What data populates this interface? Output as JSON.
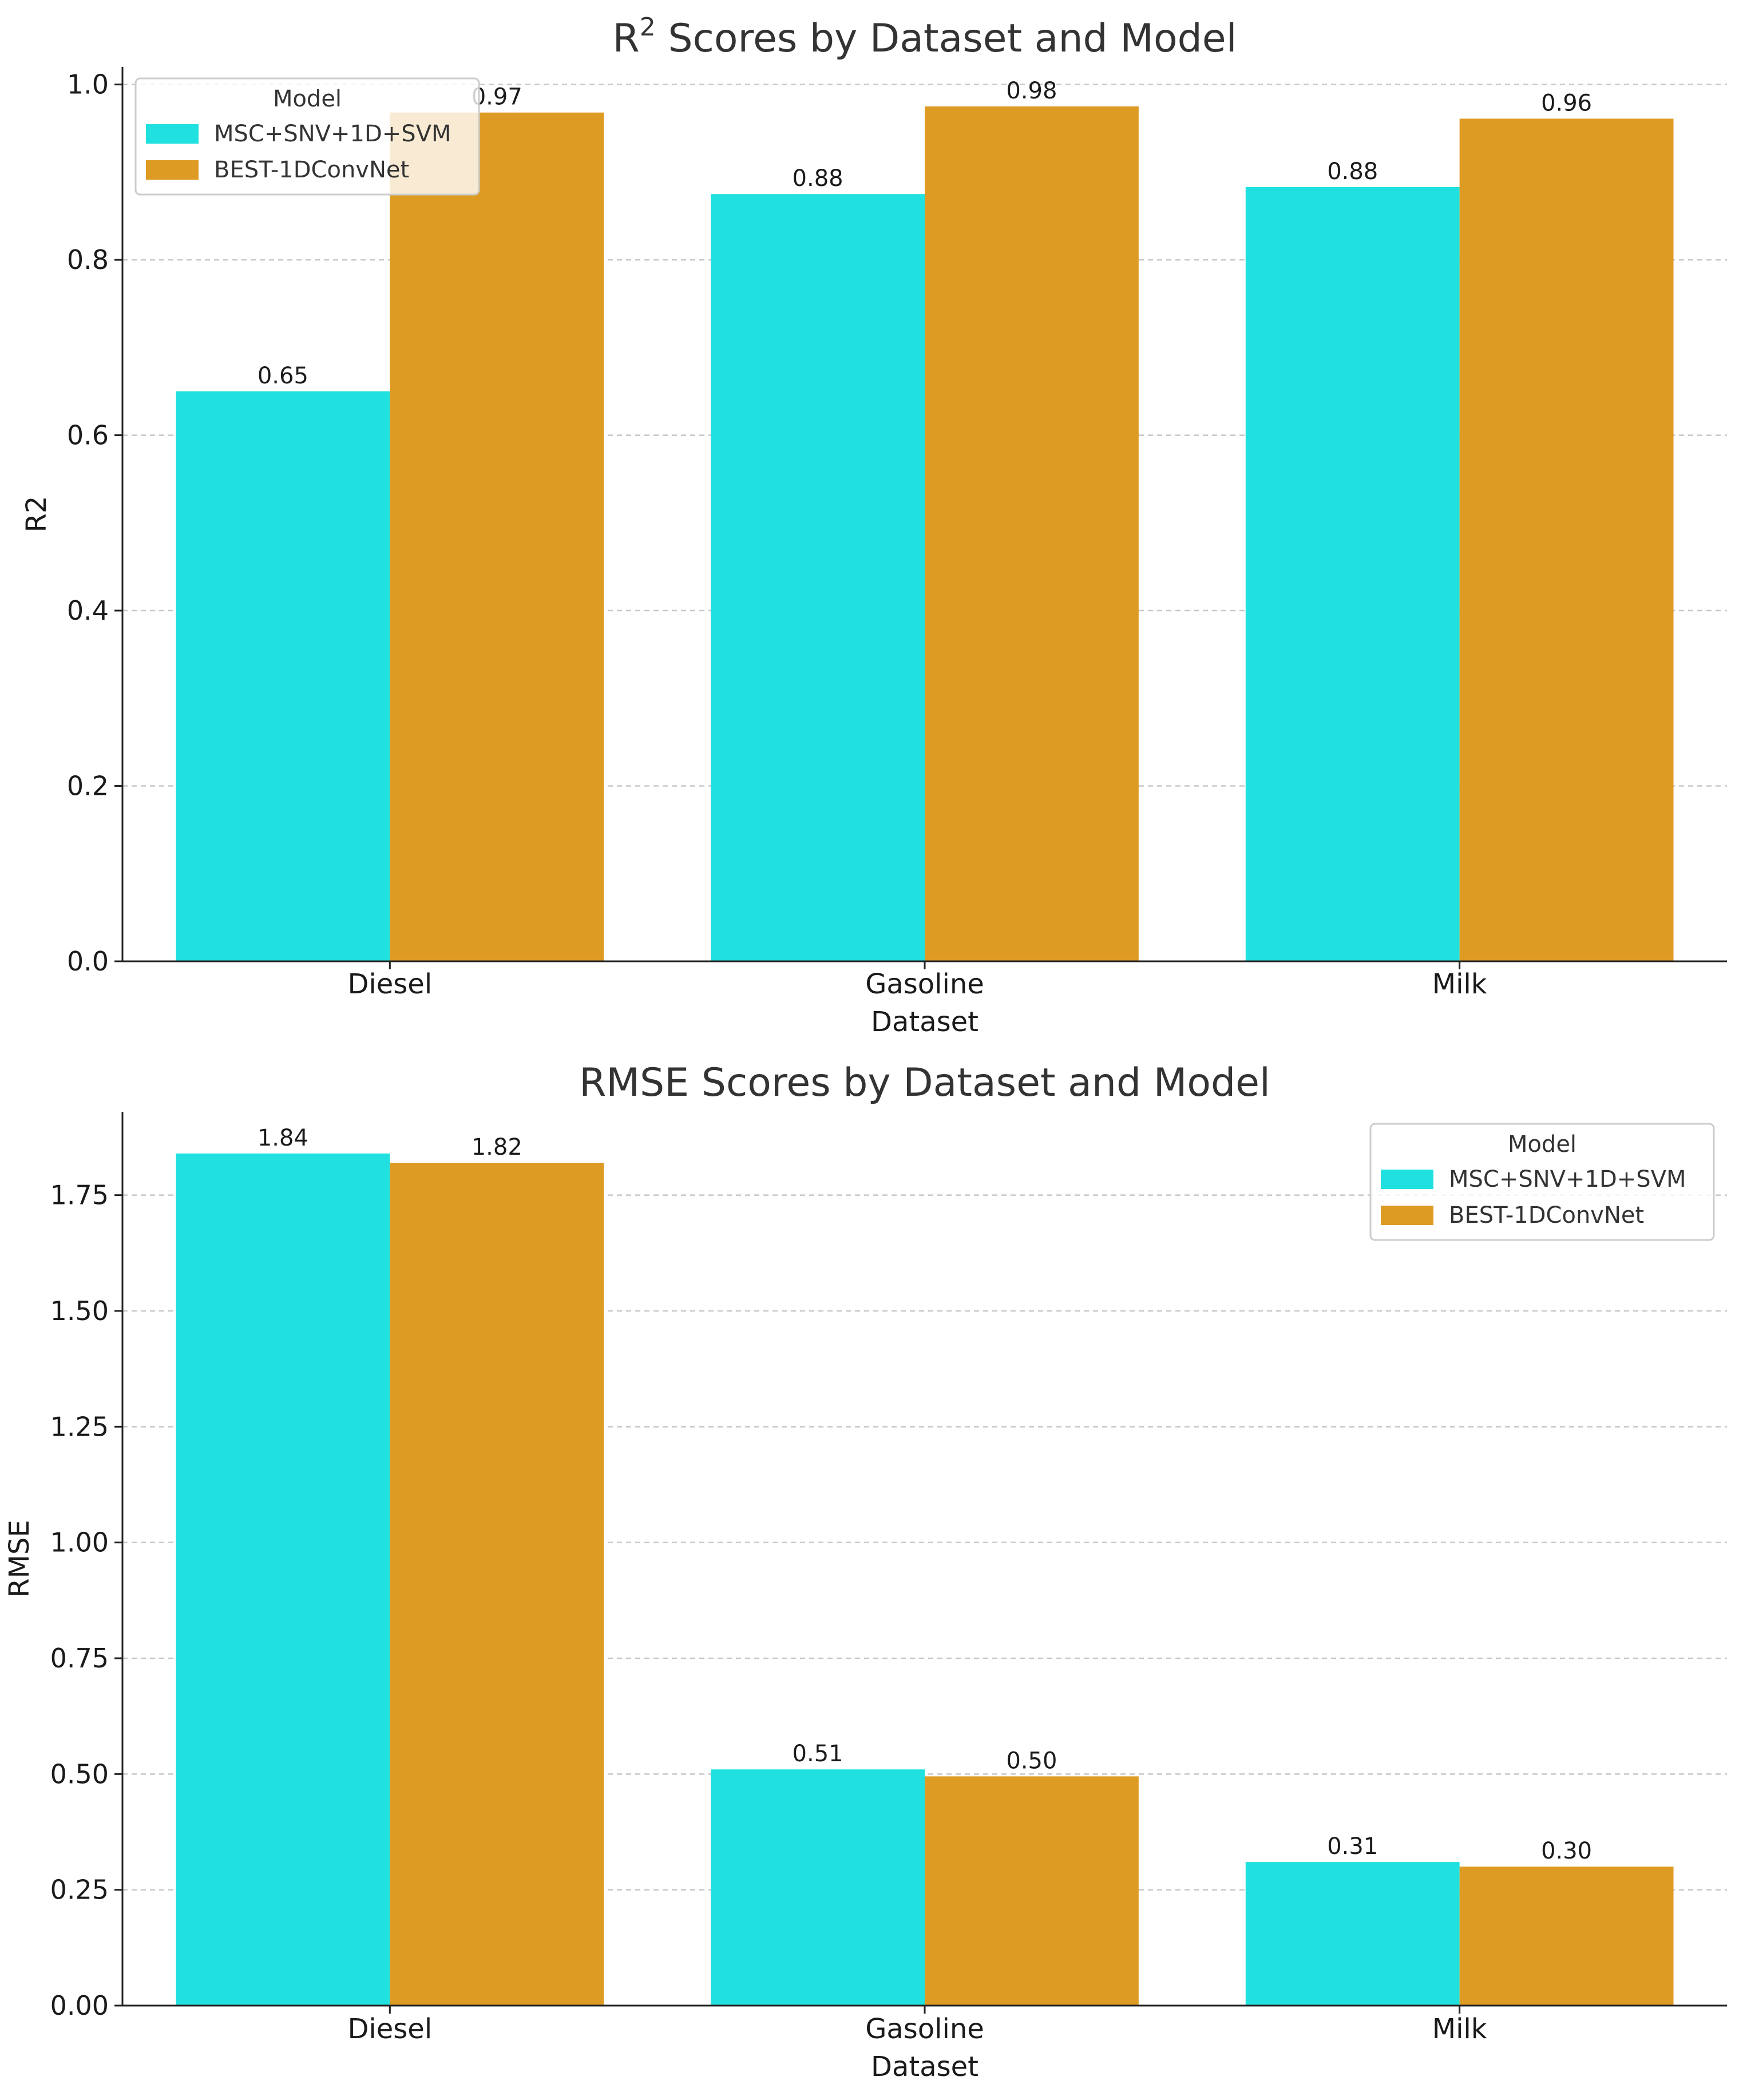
{
  "chart_data": [
    {
      "type": "bar",
      "title_prefix": "R",
      "title_superscript": "2",
      "title_suffix": " Scores by Dataset and Model",
      "xlabel": "Dataset",
      "ylabel": "R2",
      "categories": [
        "Diesel",
        "Gasoline",
        "Milk"
      ],
      "ylim": [
        0,
        1.02
      ],
      "yticks": [
        0.0,
        0.2,
        0.4,
        0.6,
        0.8,
        1.0
      ],
      "ytick_decimals": 1,
      "grid": true,
      "legend_title": "Model",
      "legend_position": "top-left",
      "series": [
        {
          "name": "MSC+SNV+1D+SVM",
          "color": "#20E0E0",
          "values": [
            0.65,
            0.875,
            0.883
          ],
          "labels": [
            "0.65",
            "0.88",
            "0.88"
          ]
        },
        {
          "name": "BEST-1DConvNet",
          "color": "#DE9B23",
          "values": [
            0.968,
            0.975,
            0.961
          ],
          "labels": [
            "0.97",
            "0.98",
            "0.96"
          ]
        }
      ]
    },
    {
      "type": "bar",
      "title_prefix": "RMSE Scores by Dataset and Model",
      "title_superscript": "",
      "title_suffix": "",
      "xlabel": "Dataset",
      "ylabel": "RMSE",
      "categories": [
        "Diesel",
        "Gasoline",
        "Milk"
      ],
      "ylim": [
        0,
        1.93
      ],
      "yticks": [
        0.0,
        0.25,
        0.5,
        0.75,
        1.0,
        1.25,
        1.5,
        1.75
      ],
      "ytick_decimals": 2,
      "grid": true,
      "legend_title": "Model",
      "legend_position": "top-right",
      "series": [
        {
          "name": "MSC+SNV+1D+SVM",
          "color": "#20E0E0",
          "values": [
            1.84,
            0.51,
            0.31
          ],
          "labels": [
            "1.84",
            "0.51",
            "0.31"
          ]
        },
        {
          "name": "BEST-1DConvNet",
          "color": "#DE9B23",
          "values": [
            1.82,
            0.495,
            0.3
          ],
          "labels": [
            "1.82",
            "0.50",
            "0.30"
          ]
        }
      ]
    }
  ]
}
